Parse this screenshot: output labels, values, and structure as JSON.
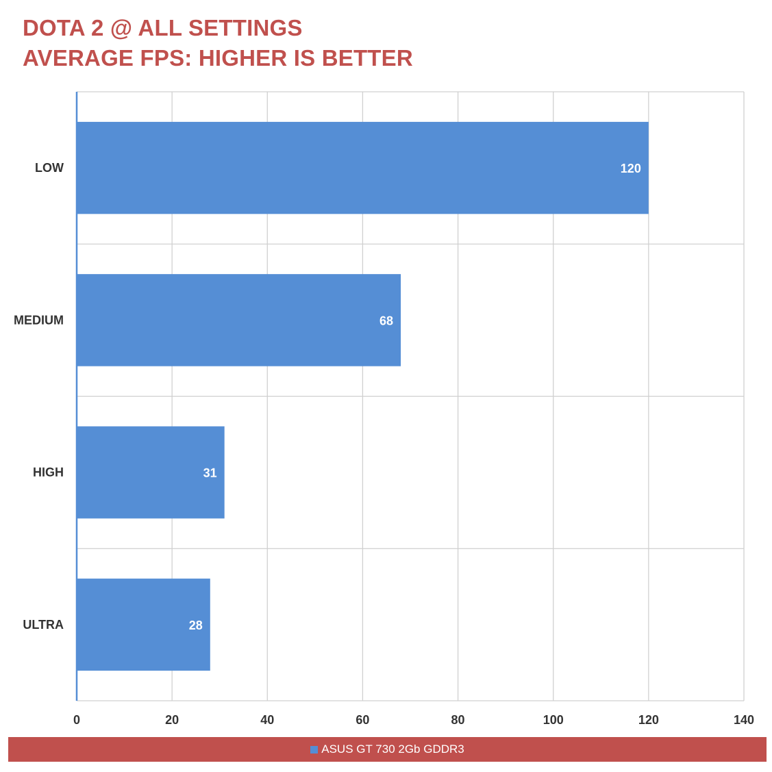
{
  "title_line1": "DOTA 2 @ ALL SETTINGS",
  "title_line2": "AVERAGE FPS: HIGHER IS BETTER",
  "colors": {
    "title": "#c0504d",
    "bar": "#558ed5",
    "legend_bg": "#c0504d",
    "grid": "#d0d0d0",
    "axis": "#558ed5"
  },
  "legend": {
    "label": "ASUS GT 730 2Gb GDDR3"
  },
  "chart_data": {
    "type": "bar",
    "orientation": "horizontal",
    "title": "DOTA 2 @ ALL SETTINGS",
    "subtitle": "AVERAGE FPS: HIGHER IS BETTER",
    "categories": [
      "LOW",
      "MEDIUM",
      "HIGH",
      "ULTRA"
    ],
    "series": [
      {
        "name": "ASUS GT 730 2Gb GDDR3",
        "values": [
          120,
          68,
          31,
          28
        ]
      }
    ],
    "xlim": [
      0,
      140
    ],
    "xticks": [
      0,
      20,
      40,
      60,
      80,
      100,
      120,
      140
    ],
    "grid": true,
    "data_labels": true,
    "legend_position": "bottom"
  }
}
